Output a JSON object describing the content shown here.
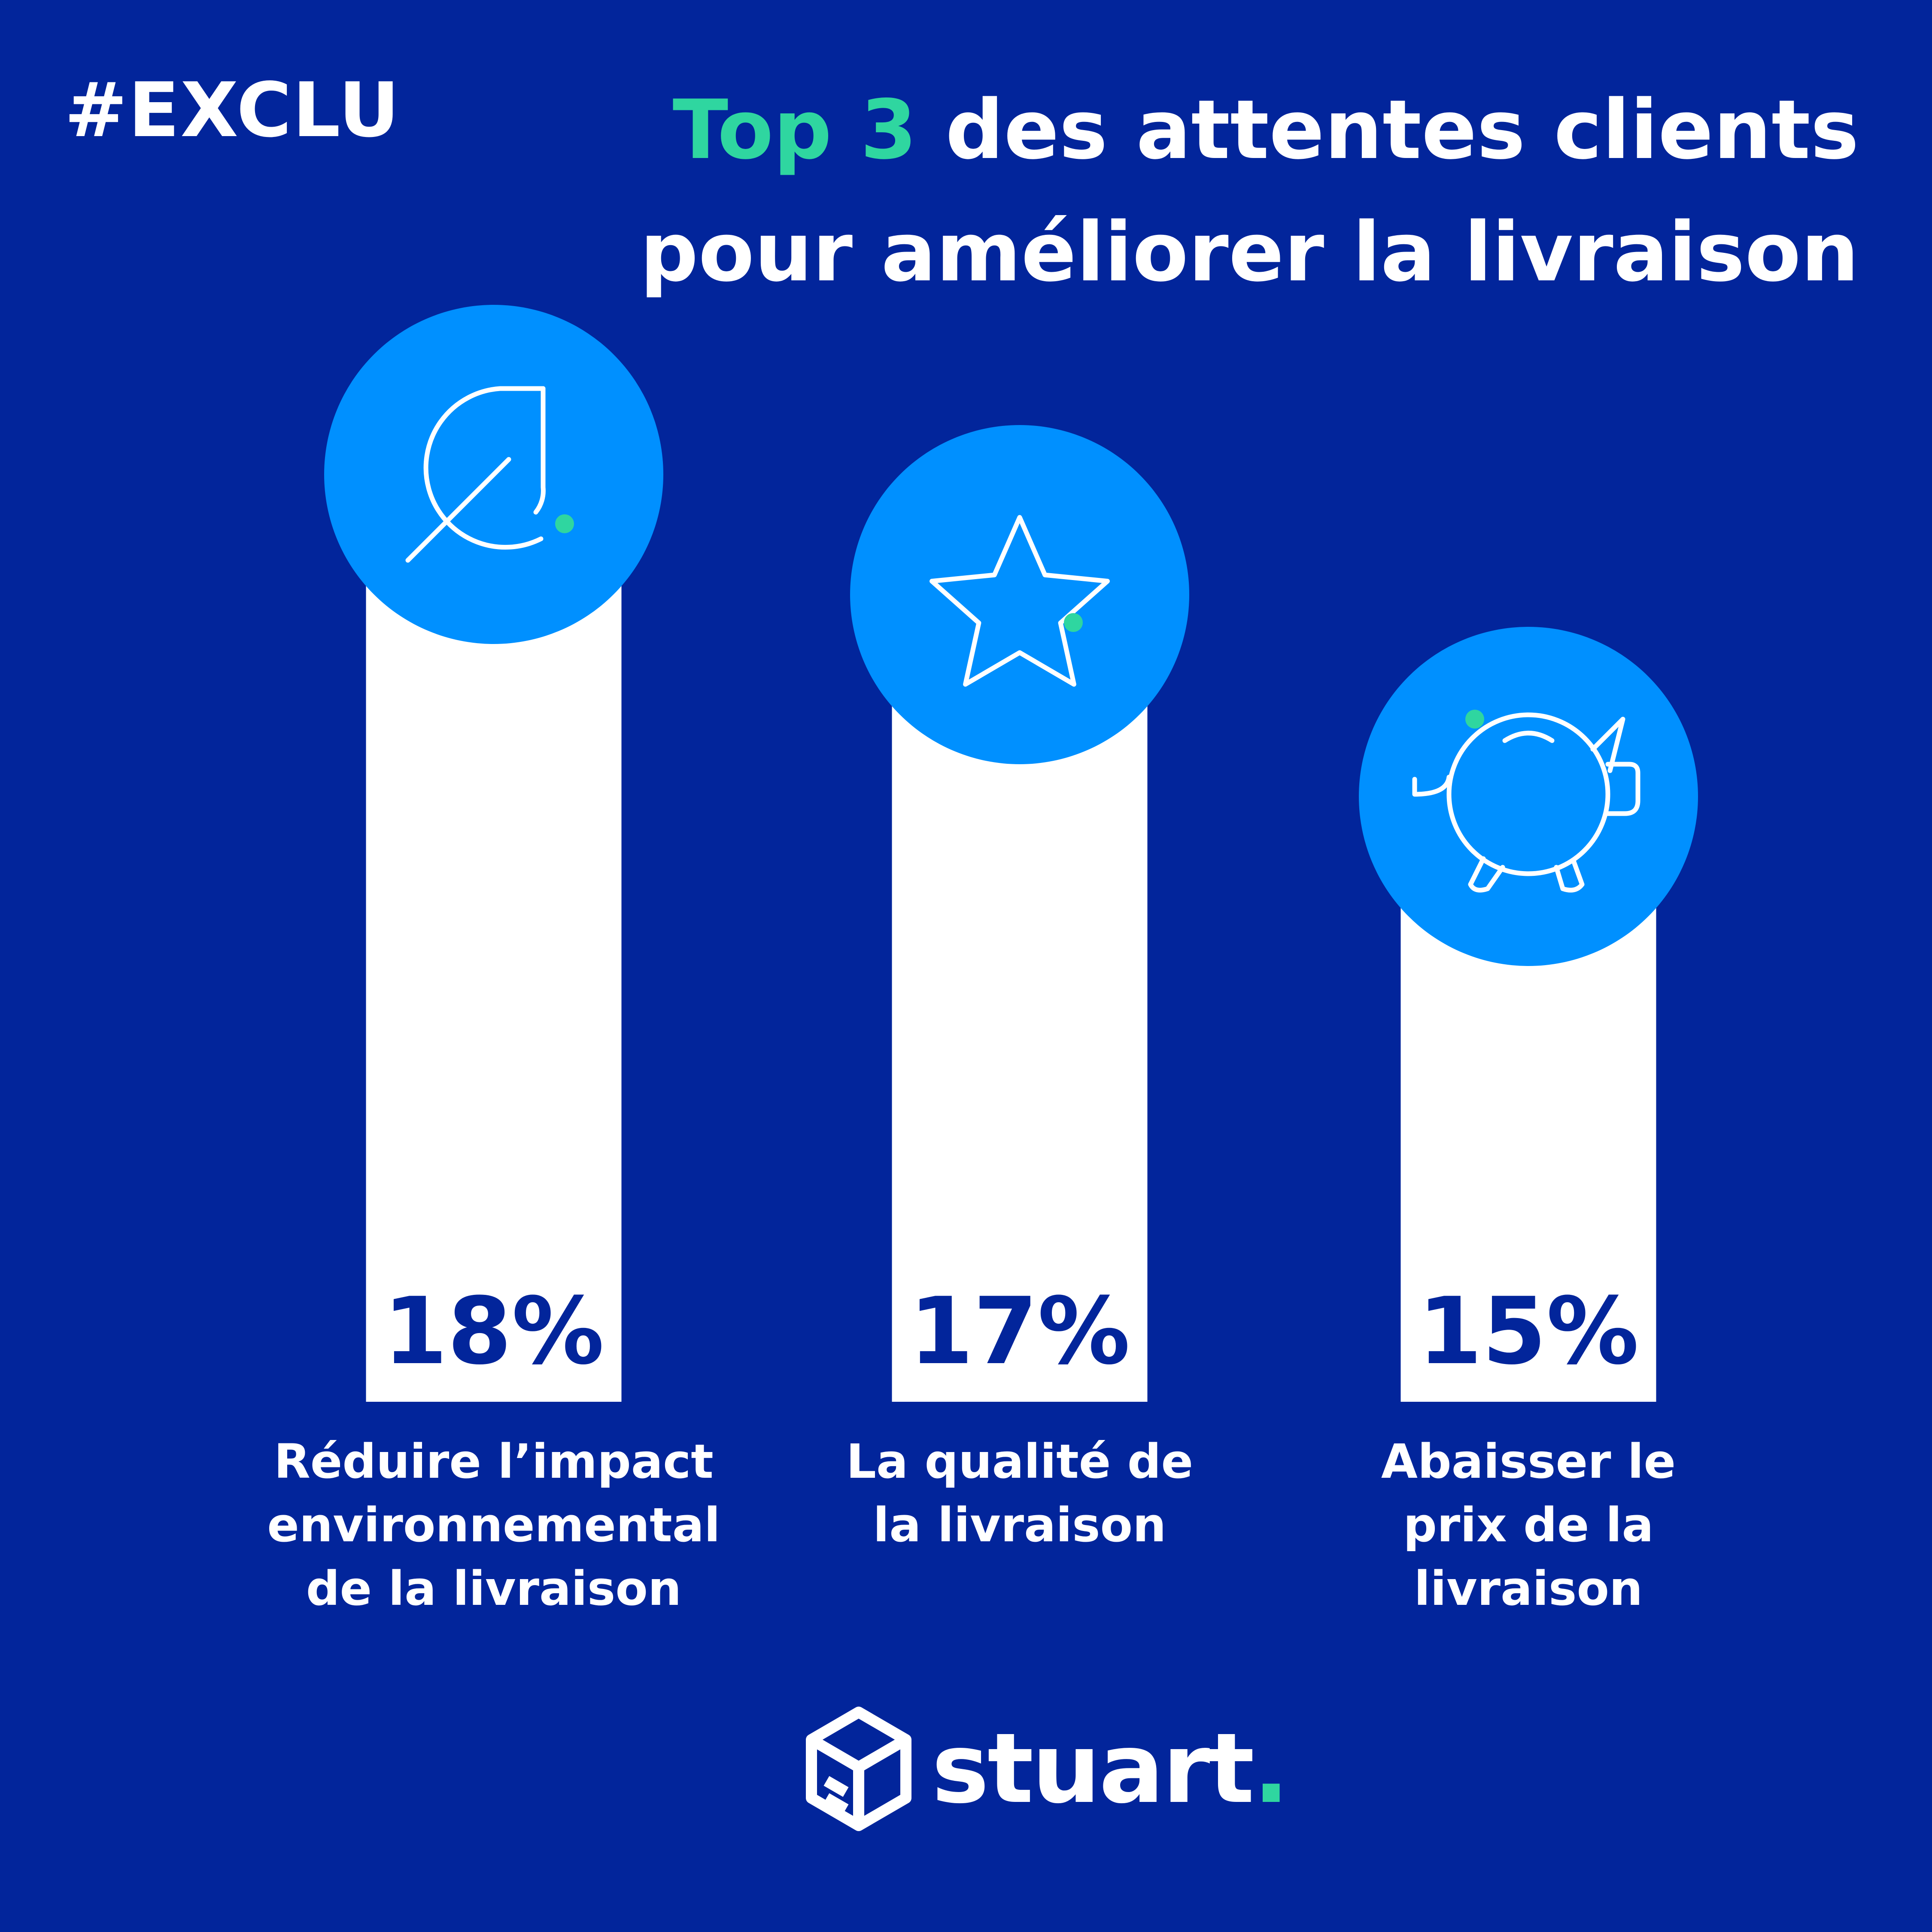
{
  "hashtag": "#EXCLU",
  "title": {
    "highlight": "Top 3",
    "line1_rest": " des attentes clients",
    "line2": "pour améliorer la livraison"
  },
  "colors": {
    "background": "#02259b",
    "accent": "#2fd6a0",
    "circle": "#0090ff",
    "bar": "#ffffff",
    "value_text": "#02259b"
  },
  "chart_data": {
    "type": "bar",
    "title": "Top 3 des attentes clients pour améliorer la livraison",
    "categories": [
      "Réduire l’impact environnemental de la livraison",
      "La qualité de la livraison",
      "Abaisser le prix de la livraison"
    ],
    "category_lines": [
      [
        "Réduire l’impact",
        "environnemental",
        "de la livraison"
      ],
      [
        "La qualité de",
        "la livraison"
      ],
      [
        "Abaisser le",
        "prix de la",
        "livraison"
      ]
    ],
    "values": [
      18,
      17,
      15
    ],
    "value_labels": [
      "18%",
      "17%",
      "15%"
    ],
    "icons": [
      "leaf-icon",
      "star-icon",
      "piggy-bank-icon"
    ],
    "unit": "%",
    "xlabel": "",
    "ylabel": "",
    "ylim": [
      0,
      18
    ],
    "grid": false,
    "legend": "none"
  },
  "logo": {
    "word": "stuart",
    "dot": "."
  }
}
